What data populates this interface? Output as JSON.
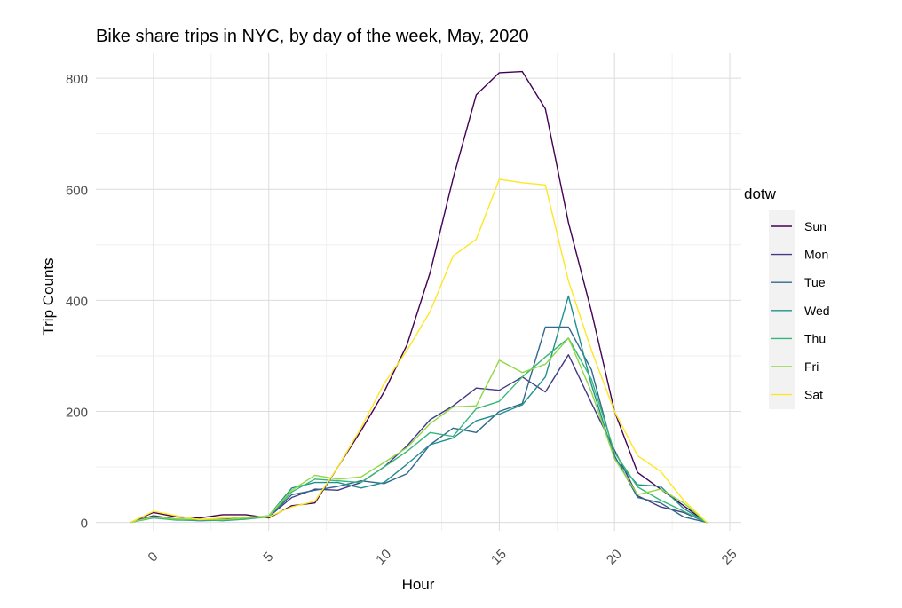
{
  "chart_data": {
    "type": "line",
    "title": "Bike share trips in NYC, by day of the week, May, 2020",
    "xlabel": "Hour",
    "ylabel": "Trip Counts",
    "xlim": [
      -2.5,
      25.5
    ],
    "ylim": [
      -15,
      845
    ],
    "x_ticks": [
      0,
      5,
      10,
      15,
      20,
      25
    ],
    "y_ticks": [
      0,
      200,
      400,
      600,
      800
    ],
    "grid": true,
    "legend": {
      "title": "dotw",
      "position": "right"
    },
    "x": [
      -1,
      0,
      1,
      2,
      3,
      4,
      5,
      6,
      7,
      8,
      9,
      10,
      11,
      12,
      13,
      14,
      15,
      16,
      17,
      18,
      19,
      20,
      21,
      22,
      23,
      24
    ],
    "series": [
      {
        "name": "Sun",
        "color": "#440154",
        "values": [
          0,
          18,
          10,
          8,
          14,
          14,
          8,
          30,
          35,
          100,
          165,
          235,
          320,
          450,
          620,
          770,
          810,
          812,
          745,
          540,
          380,
          200,
          90,
          60,
          30,
          0
        ]
      },
      {
        "name": "Mon",
        "color": "#443A83",
        "values": [
          0,
          12,
          6,
          5,
          6,
          8,
          10,
          45,
          60,
          58,
          72,
          100,
          138,
          185,
          210,
          242,
          238,
          262,
          235,
          302,
          215,
          130,
          48,
          28,
          18,
          0
        ]
      },
      {
        "name": "Tue",
        "color": "#31688E",
        "values": [
          0,
          10,
          5,
          3,
          4,
          8,
          10,
          50,
          58,
          65,
          75,
          70,
          88,
          140,
          170,
          162,
          200,
          214,
          352,
          352,
          275,
          120,
          45,
          35,
          10,
          0
        ]
      },
      {
        "name": "Wed",
        "color": "#21908C",
        "values": [
          0,
          10,
          5,
          5,
          3,
          6,
          12,
          62,
          72,
          72,
          62,
          72,
          105,
          140,
          152,
          183,
          195,
          212,
          262,
          408,
          248,
          115,
          68,
          65,
          25,
          0
        ]
      },
      {
        "name": "Thu",
        "color": "#35B779",
        "values": [
          0,
          8,
          4,
          4,
          4,
          6,
          10,
          55,
          78,
          75,
          72,
          100,
          128,
          162,
          155,
          205,
          218,
          262,
          298,
          332,
          258,
          126,
          64,
          40,
          20,
          0
        ]
      },
      {
        "name": "Fri",
        "color": "#8FD744",
        "values": [
          0,
          10,
          6,
          6,
          5,
          8,
          12,
          58,
          85,
          78,
          82,
          108,
          135,
          178,
          208,
          210,
          292,
          270,
          285,
          332,
          235,
          115,
          50,
          60,
          35,
          0
        ]
      },
      {
        "name": "Sat",
        "color": "#FDE725",
        "values": [
          0,
          20,
          12,
          5,
          8,
          10,
          10,
          28,
          38,
          100,
          170,
          250,
          310,
          380,
          480,
          510,
          618,
          612,
          608,
          435,
          310,
          200,
          120,
          92,
          40,
          0
        ]
      }
    ]
  }
}
